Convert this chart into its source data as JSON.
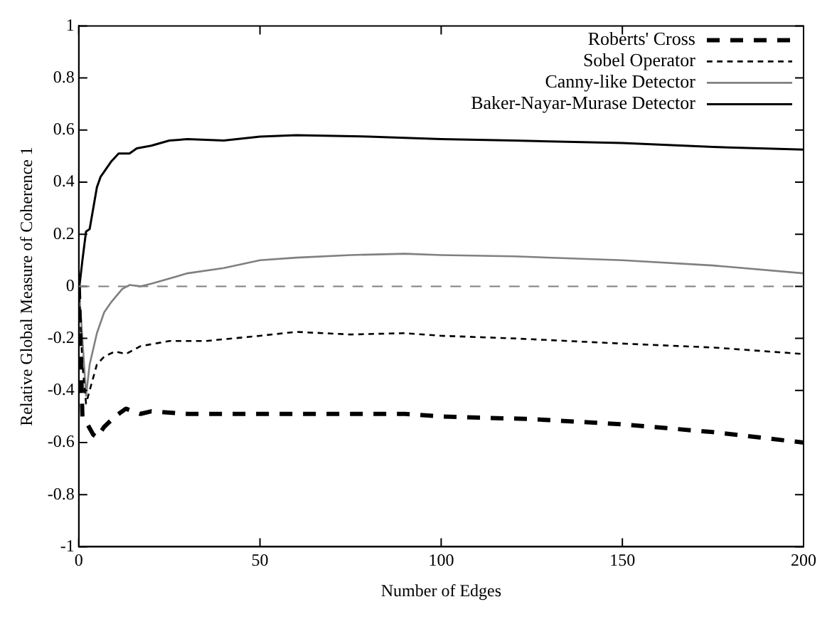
{
  "chart_data": {
    "type": "line",
    "xlabel": "Number of Edges",
    "ylabel": "Relative Global Measure of Coherence 1",
    "xlim": [
      0,
      200
    ],
    "xticks": [
      0,
      50,
      100,
      150,
      200
    ],
    "ylim": [
      -1,
      1
    ],
    "yticks": [
      -1,
      -0.8,
      -0.6,
      -0.4,
      -0.2,
      0,
      0.2,
      0.4,
      0.6,
      0.8,
      1
    ],
    "grid": false,
    "legend": "top right",
    "marker": "none",
    "ref_lines": [
      {
        "axis": "y",
        "value": 0,
        "color": "#808080",
        "line_style": "dashed"
      }
    ],
    "series": [
      {
        "name": "Roberts' Cross",
        "color": "#000000",
        "line_style": "dashed",
        "x": [
          0,
          1,
          2,
          4,
          5,
          7,
          10,
          13,
          17,
          20,
          30,
          50,
          70,
          90,
          100,
          125,
          150,
          175,
          200
        ],
        "values": [
          0,
          -0.5,
          -0.52,
          -0.57,
          -0.58,
          -0.54,
          -0.5,
          -0.47,
          -0.49,
          -0.48,
          -0.49,
          -0.49,
          -0.49,
          -0.49,
          -0.5,
          -0.51,
          -0.53,
          -0.56,
          -0.6
        ]
      },
      {
        "name": "Sobel Operator",
        "color": "#000000",
        "line_style": "dashed",
        "x": [
          0,
          1,
          2,
          3,
          5,
          7,
          10,
          13,
          17,
          25,
          35,
          50,
          60,
          75,
          90,
          100,
          120,
          150,
          175,
          200
        ],
        "values": [
          0,
          -0.3,
          -0.45,
          -0.4,
          -0.3,
          -0.27,
          -0.25,
          -0.26,
          -0.23,
          -0.21,
          -0.21,
          -0.19,
          -0.175,
          -0.185,
          -0.18,
          -0.19,
          -0.2,
          -0.22,
          -0.235,
          -0.26
        ]
      },
      {
        "name": "Canny-like Detector",
        "color": "#808080",
        "line_style": "solid",
        "x": [
          0,
          1,
          2,
          3,
          5,
          7,
          9,
          12,
          14,
          17,
          20,
          25,
          30,
          40,
          50,
          60,
          75,
          90,
          100,
          120,
          150,
          175,
          200
        ],
        "values": [
          0,
          -0.2,
          -0.42,
          -0.3,
          -0.18,
          -0.1,
          -0.06,
          -0.01,
          0.005,
          0,
          0.01,
          0.03,
          0.05,
          0.07,
          0.1,
          0.11,
          0.12,
          0.125,
          0.12,
          0.115,
          0.1,
          0.08,
          0.05
        ]
      },
      {
        "name": "Baker-Nayar-Murase Detector",
        "color": "#000000",
        "line_style": "solid",
        "x": [
          0,
          1,
          2,
          3,
          4,
          5,
          6,
          7,
          9,
          11,
          14,
          16,
          20,
          25,
          30,
          40,
          50,
          60,
          80,
          100,
          120,
          150,
          175,
          200
        ],
        "values": [
          -0.02,
          0.1,
          0.21,
          0.22,
          0.3,
          0.38,
          0.42,
          0.44,
          0.48,
          0.51,
          0.51,
          0.53,
          0.54,
          0.56,
          0.565,
          0.56,
          0.575,
          0.58,
          0.575,
          0.565,
          0.56,
          0.55,
          0.535,
          0.525
        ]
      }
    ]
  }
}
